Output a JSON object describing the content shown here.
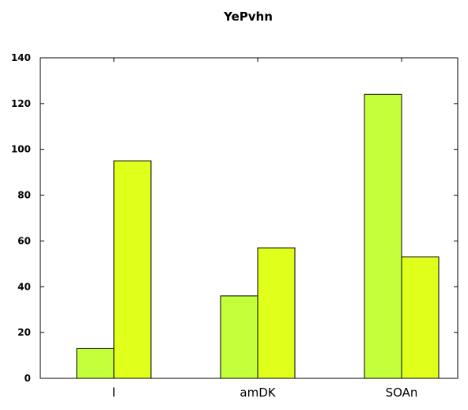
{
  "chart_data": {
    "type": "bar",
    "title": "YePvhn",
    "xlabel": "",
    "ylabel": "",
    "categories": [
      "l",
      "amDK",
      "SOAn"
    ],
    "series": [
      {
        "values": [
          13,
          36,
          124
        ],
        "color": "#c4ff3b"
      },
      {
        "values": [
          95,
          57,
          53
        ],
        "color": "#e0ff1a"
      }
    ],
    "ylim": [
      0,
      140
    ],
    "yticks": [
      0,
      20,
      40,
      60,
      80,
      100,
      120,
      140
    ],
    "yticks_labels": [
      "0",
      "20",
      "40",
      "60",
      "80",
      "100",
      "120",
      "140"
    ],
    "grid": false,
    "legend": "none"
  }
}
